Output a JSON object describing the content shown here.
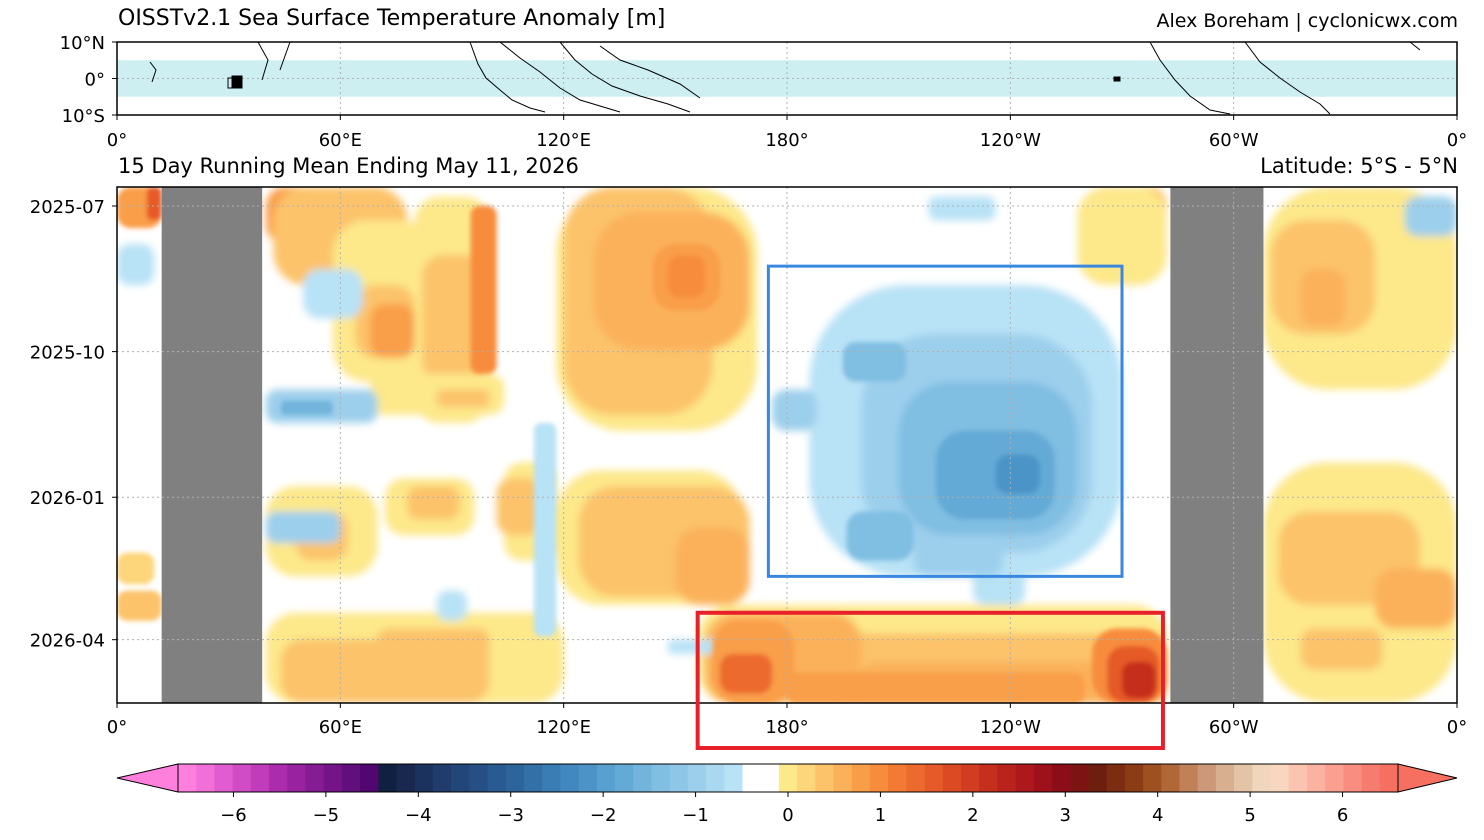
{
  "header": {
    "title": "OISSTv2.1 Sea Surface Temperature Anomaly [m]",
    "credit": "Alex Boreham | cyclonicwx.com",
    "subtitle": "15 Day Running Mean Ending May 11, 2026",
    "latitude": "Latitude: 5°S - 5°N"
  },
  "colors": {
    "band": "#cdeff2",
    "land_gray": "#808080",
    "box_blue": "#3a87e0",
    "box_red": "#e8202a",
    "grid": "#b0b0b0"
  },
  "chart_data": [
    {
      "type": "map",
      "panel": "reference-map",
      "x_ticks": [
        "0°",
        "60°E",
        "120°E",
        "180°",
        "120°W",
        "60°W",
        "0°"
      ],
      "x_tick_values": [
        0,
        60,
        120,
        180,
        240,
        300,
        360
      ],
      "y_ticks": [
        "10°N",
        "0°",
        "10°S"
      ],
      "y_tick_values": [
        10,
        0,
        -10
      ],
      "xlim": [
        0,
        360
      ],
      "ylim": [
        -10,
        10
      ],
      "highlight_band_lat": [
        -5,
        5
      ],
      "grid": true
    },
    {
      "type": "heatmap",
      "panel": "hovmoller",
      "x_ticks": [
        "0°",
        "60°E",
        "120°E",
        "180°",
        "120°W",
        "60°W",
        "0°"
      ],
      "x_tick_values": [
        0,
        60,
        120,
        180,
        240,
        300,
        360
      ],
      "y_ticks": [
        "2025-07",
        "2025-10",
        "2026-01",
        "2026-04"
      ],
      "y_tick_values": [
        "2025-07-01",
        "2025-10-01",
        "2026-01-01",
        "2026-04-01"
      ],
      "xlim": [
        0,
        360
      ],
      "ylim": [
        "2025-06-19",
        "2026-05-11"
      ],
      "grid": true,
      "land_masks_lon": [
        [
          12,
          39
        ],
        [
          283,
          308
        ]
      ],
      "annotation_boxes": [
        {
          "color": "blue",
          "lon": [
            175,
            270
          ],
          "time": [
            "2025-08-08",
            "2026-02-20"
          ]
        },
        {
          "color": "red",
          "lon": [
            156,
            281
          ],
          "time": [
            "2026-03-15",
            "2026-06-01"
          ]
        }
      ]
    },
    {
      "type": "colorbar",
      "panel": "colorbar",
      "ticks": [
        "−6",
        "−5",
        "−4",
        "−3",
        "−2",
        "−1",
        "0",
        "1",
        "2",
        "3",
        "4",
        "5",
        "6"
      ],
      "tick_values": [
        -6,
        -5,
        -4,
        -3,
        -2,
        -1,
        0,
        1,
        2,
        3,
        4,
        5,
        6
      ],
      "range": [
        -6.6,
        6.6
      ],
      "extend": "both",
      "colors": [
        "#ff80dc",
        "#f070d8",
        "#e05cd0",
        "#d04cc6",
        "#c03cba",
        "#ac2cae",
        "#9822a0",
        "#861c94",
        "#741488",
        "#620e7c",
        "#520670",
        "#102040",
        "#18284e",
        "#1c325e",
        "#203c6c",
        "#23467a",
        "#264f86",
        "#2a5a92",
        "#2e649c",
        "#3470a8",
        "#3a7cb4",
        "#4288c0",
        "#4c94c8",
        "#58a0d0",
        "#64aad6",
        "#72b4dc",
        "#80bee2",
        "#8ec6e8",
        "#9ccfec",
        "#aad8f0",
        "#b8e2f6",
        "#ffffff",
        "#ffffff",
        "#fde88a",
        "#fdd57a",
        "#fcc36a",
        "#fbb15a",
        "#f99e48",
        "#f78c3c",
        "#f27a34",
        "#ec6a2e",
        "#e55a28",
        "#dc4a24",
        "#d23c20",
        "#c62e1e",
        "#ba221c",
        "#ac181c",
        "#9e101a",
        "#8c0c18",
        "#7c1414",
        "#6e1e0e",
        "#7c2c10",
        "#8c3c14",
        "#9e5020",
        "#b06838",
        "#c08058",
        "#cc9878",
        "#d8b090",
        "#e4c4a6",
        "#f0d6bc",
        "#f8d6c0",
        "#fbc4b0",
        "#fbb2a0",
        "#fba090",
        "#f98e80",
        "#f77c70",
        "#f57060"
      ]
    }
  ]
}
